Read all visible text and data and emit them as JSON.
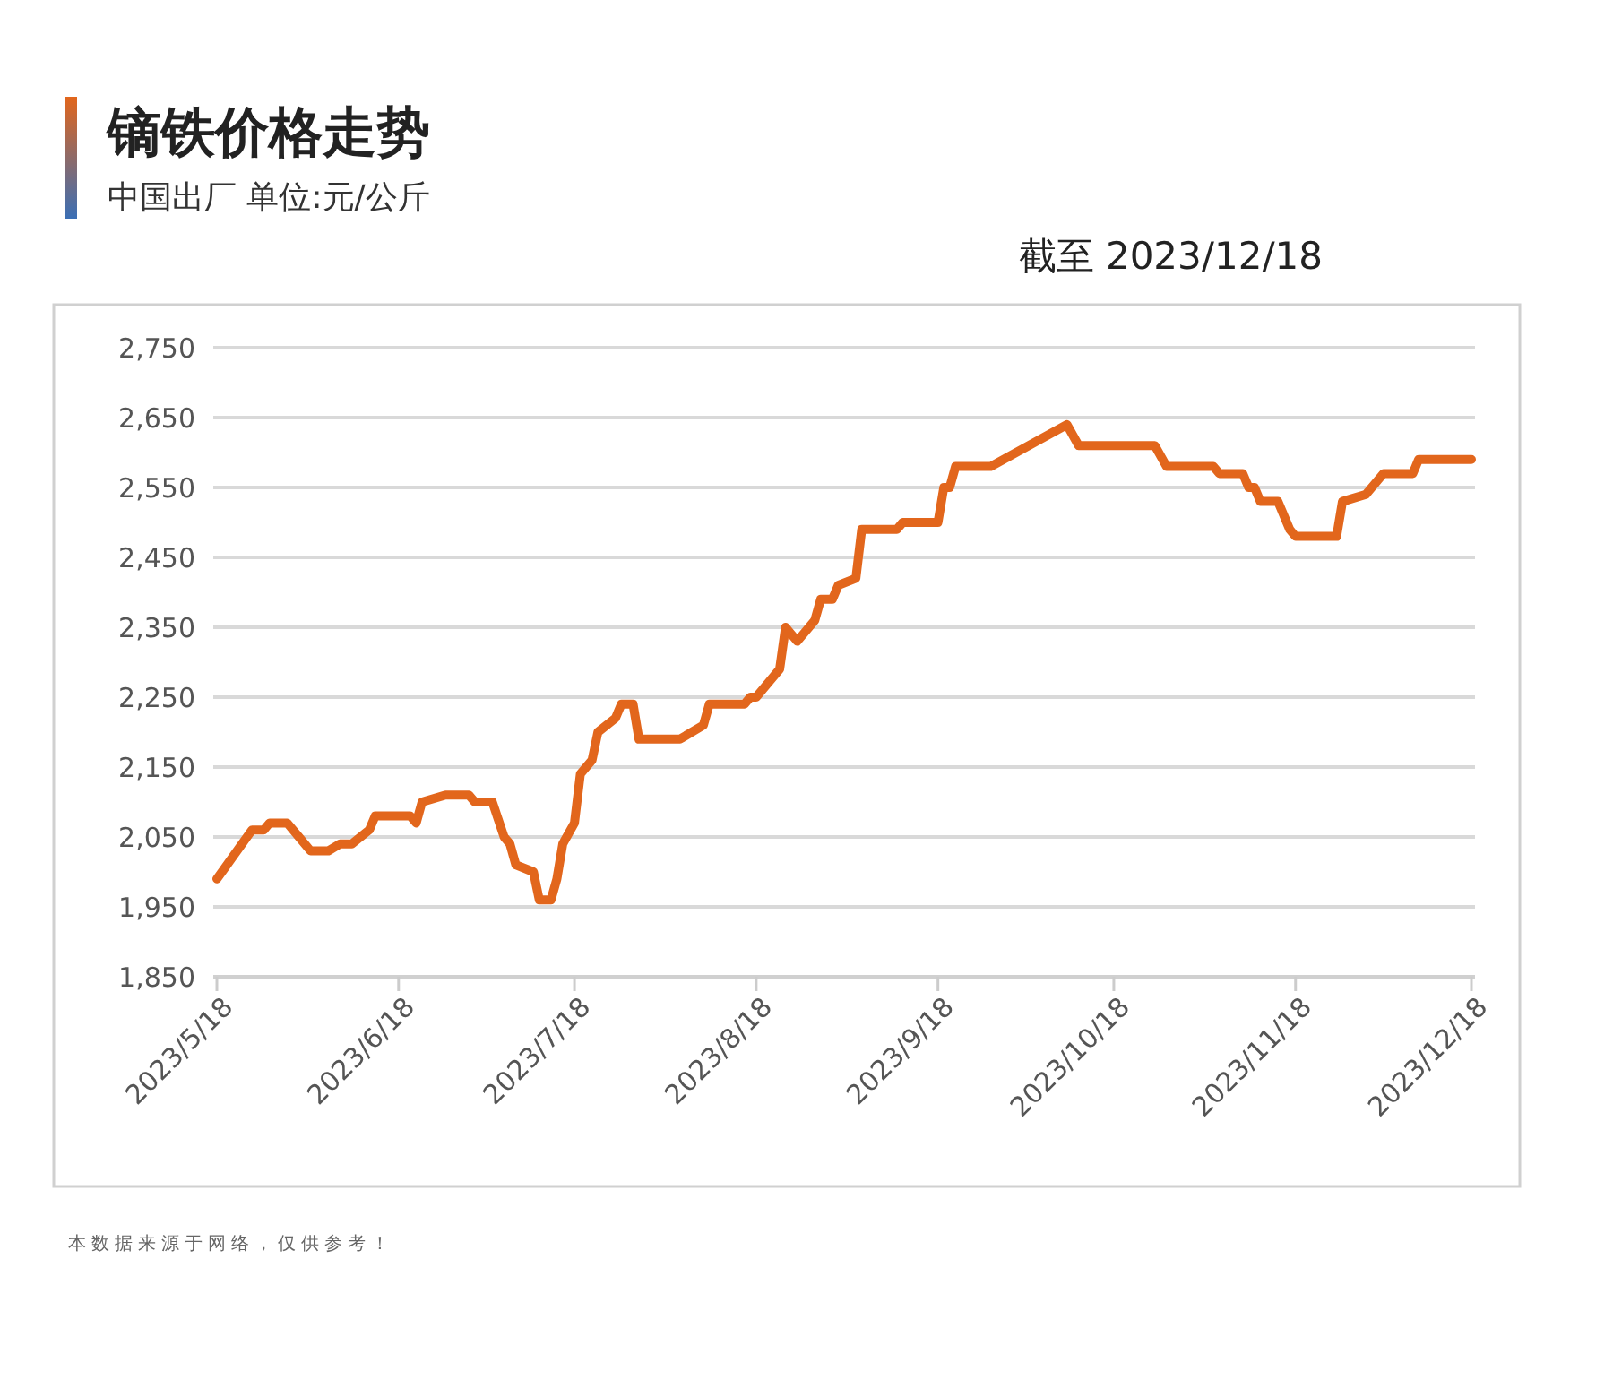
{
  "chart_data": {
    "type": "line",
    "title": "镝铁价格走势",
    "subtitle": "中国出厂 单位:元/公斤",
    "annotations": [
      "截至 2023/12/18",
      "本数据来源于网络，仅供参考！"
    ],
    "x": [
      "2023-05-18",
      "2023-05-24",
      "2023-05-26",
      "2023-05-27",
      "2023-05-30",
      "2023-06-01",
      "2023-06-03",
      "2023-06-06",
      "2023-06-08",
      "2023-06-10",
      "2023-06-13",
      "2023-06-14",
      "2023-06-20",
      "2023-06-21",
      "2023-06-22",
      "2023-06-26",
      "2023-06-30",
      "2023-07-01",
      "2023-07-04",
      "2023-07-06",
      "2023-07-07",
      "2023-07-08",
      "2023-07-11",
      "2023-07-12",
      "2023-07-14",
      "2023-07-15",
      "2023-07-16",
      "2023-07-18",
      "2023-07-19",
      "2023-07-21",
      "2023-07-22",
      "2023-07-25",
      "2023-07-26",
      "2023-07-28",
      "2023-07-29",
      "2023-08-05",
      "2023-08-09",
      "2023-08-10",
      "2023-08-16",
      "2023-08-17",
      "2023-08-18",
      "2023-08-22",
      "2023-08-23",
      "2023-08-25",
      "2023-08-28",
      "2023-08-29",
      "2023-08-31",
      "2023-09-01",
      "2023-09-04",
      "2023-09-05",
      "2023-09-11",
      "2023-09-12",
      "2023-09-18",
      "2023-09-19",
      "2023-09-20",
      "2023-09-21",
      "2023-09-27",
      "2023-10-10",
      "2023-10-12",
      "2023-10-25",
      "2023-10-27",
      "2023-11-04",
      "2023-11-05",
      "2023-11-09",
      "2023-11-10",
      "2023-11-11",
      "2023-11-12",
      "2023-11-15",
      "2023-11-17",
      "2023-11-18",
      "2023-11-25",
      "2023-11-26",
      "2023-11-30",
      "2023-12-03",
      "2023-12-08",
      "2023-12-09",
      "2023-12-18"
    ],
    "series": [
      {
        "color": "#e2661c",
        "values": [
          1990,
          2060,
          2060,
          2070,
          2070,
          2050,
          2030,
          2030,
          2040,
          2040,
          2060,
          2080,
          2080,
          2070,
          2100,
          2110,
          2110,
          2100,
          2100,
          2050,
          2040,
          2010,
          2000,
          1960,
          1960,
          1990,
          2040,
          2070,
          2140,
          2160,
          2200,
          2220,
          2240,
          2240,
          2190,
          2190,
          2210,
          2240,
          2240,
          2250,
          2250,
          2290,
          2350,
          2330,
          2360,
          2390,
          2390,
          2410,
          2420,
          2490,
          2490,
          2500,
          2500,
          2550,
          2550,
          2580,
          2580,
          2640,
          2610,
          2610,
          2580,
          2580,
          2570,
          2570,
          2550,
          2550,
          2530,
          2530,
          2490,
          2480,
          2480,
          2530,
          2540,
          2570,
          2570,
          2590,
          2590
        ]
      }
    ],
    "xlim": [
      "2023-05-18",
      "2023-12-18"
    ],
    "xticks": [
      {
        "value": "2023-05-18",
        "label": "2023/5/18"
      },
      {
        "value": "2023-06-18",
        "label": "2023/6/18"
      },
      {
        "value": "2023-07-18",
        "label": "2023/7/18"
      },
      {
        "value": "2023-08-18",
        "label": "2023/8/18"
      },
      {
        "value": "2023-09-18",
        "label": "2023/9/18"
      },
      {
        "value": "2023-10-18",
        "label": "2023/10/18"
      },
      {
        "value": "2023-11-18",
        "label": "2023/11/18"
      },
      {
        "value": "2023-12-18",
        "label": "2023/12/18"
      }
    ],
    "ylim": [
      1850,
      2750
    ],
    "yticks": [
      {
        "value": 1850,
        "label": "1,850"
      },
      {
        "value": 1950,
        "label": "1,950"
      },
      {
        "value": 2050,
        "label": "2,050"
      },
      {
        "value": 2150,
        "label": "2,150"
      },
      {
        "value": 2250,
        "label": "2,250"
      },
      {
        "value": 2350,
        "label": "2,350"
      },
      {
        "value": 2450,
        "label": "2,450"
      },
      {
        "value": 2550,
        "label": "2,550"
      },
      {
        "value": 2650,
        "label": "2,650"
      },
      {
        "value": 2750,
        "label": "2,750"
      }
    ],
    "grid": "y",
    "marker": "none",
    "line_style": "solid"
  }
}
